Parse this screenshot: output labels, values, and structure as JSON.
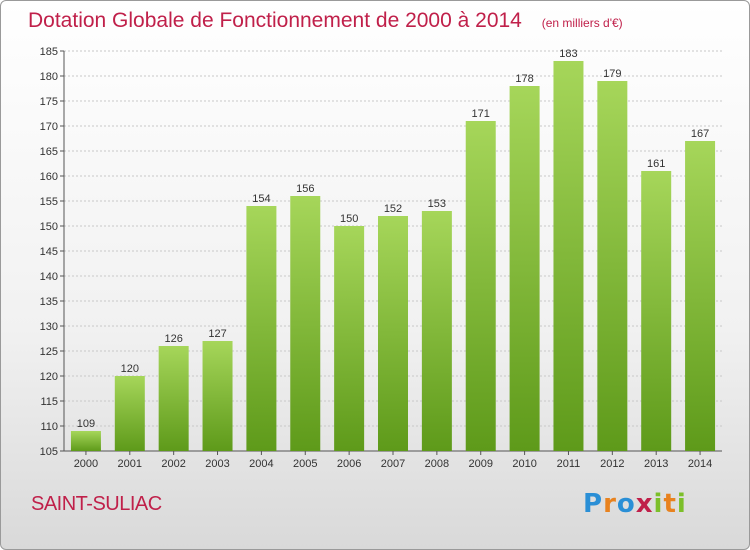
{
  "header": {
    "title": "Dotation Globale de Fonctionnement de 2000 à 2014",
    "unit": "(en milliers d'€)"
  },
  "footer": {
    "commune": "SAINT-SULIAC",
    "logo_text": "Proxiti",
    "logo_letters": [
      {
        "ch": "P",
        "color": "#2a8fd6"
      },
      {
        "ch": "r",
        "color": "#e8821e"
      },
      {
        "ch": "o",
        "color": "#2a8fd6"
      },
      {
        "ch": "x",
        "color": "#c0204a"
      },
      {
        "ch": "i",
        "color": "#7cbf2a"
      },
      {
        "ch": "t",
        "color": "#e8821e"
      },
      {
        "ch": "i",
        "color": "#7cbf2a"
      }
    ]
  },
  "chart_data": {
    "type": "bar",
    "categories": [
      "2000",
      "2001",
      "2002",
      "2003",
      "2004",
      "2005",
      "2006",
      "2007",
      "2008",
      "2009",
      "2010",
      "2011",
      "2012",
      "2013",
      "2014"
    ],
    "values": [
      109,
      120,
      126,
      127,
      154,
      156,
      150,
      152,
      153,
      171,
      178,
      183,
      179,
      161,
      167
    ],
    "ylim": [
      105,
      185
    ],
    "yticks": [
      105,
      110,
      115,
      120,
      125,
      130,
      135,
      140,
      145,
      150,
      155,
      160,
      165,
      170,
      175,
      180,
      185
    ],
    "grid": true,
    "bar_color_top": "#a6d65a",
    "bar_color_bottom": "#5e9a1a",
    "accent_color": "#c0204a"
  }
}
